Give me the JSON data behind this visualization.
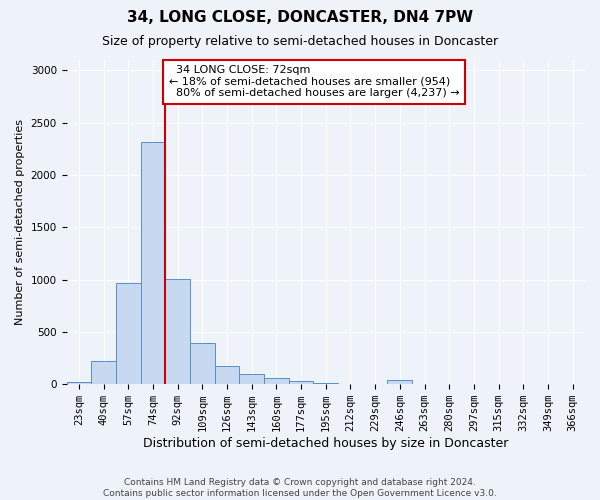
{
  "title": "34, LONG CLOSE, DONCASTER, DN4 7PW",
  "subtitle": "Size of property relative to semi-detached houses in Doncaster",
  "xlabel": "Distribution of semi-detached houses by size in Doncaster",
  "ylabel": "Number of semi-detached properties",
  "categories": [
    "23sqm",
    "40sqm",
    "57sqm",
    "74sqm",
    "92sqm",
    "109sqm",
    "126sqm",
    "143sqm",
    "160sqm",
    "177sqm",
    "195sqm",
    "212sqm",
    "229sqm",
    "246sqm",
    "263sqm",
    "280sqm",
    "297sqm",
    "315sqm",
    "332sqm",
    "349sqm",
    "366sqm"
  ],
  "values": [
    20,
    220,
    970,
    2320,
    1010,
    390,
    175,
    100,
    60,
    35,
    10,
    5,
    5,
    40,
    5,
    2,
    2,
    2,
    2,
    2,
    2
  ],
  "bar_color": "#c6d9f0",
  "bar_edge_color": "#5b8ec4",
  "property_line_label": "34 LONG CLOSE: 72sqm",
  "smaller_pct": "18%",
  "smaller_count": "954",
  "larger_pct": "80%",
  "larger_count": "4,237",
  "annotation_box_color": "#cc0000",
  "vline_color": "#cc0000",
  "vline_x": 3.5,
  "ylim": [
    0,
    3100
  ],
  "yticks": [
    0,
    500,
    1000,
    1500,
    2000,
    2500,
    3000
  ],
  "footer1": "Contains HM Land Registry data © Crown copyright and database right 2024.",
  "footer2": "Contains public sector information licensed under the Open Government Licence v3.0.",
  "title_fontsize": 11,
  "subtitle_fontsize": 9,
  "xlabel_fontsize": 9,
  "ylabel_fontsize": 8,
  "tick_fontsize": 7.5,
  "annotation_fontsize": 8,
  "footer_fontsize": 6.5,
  "background_color": "#eef2f9",
  "plot_background": "#eef2f9"
}
